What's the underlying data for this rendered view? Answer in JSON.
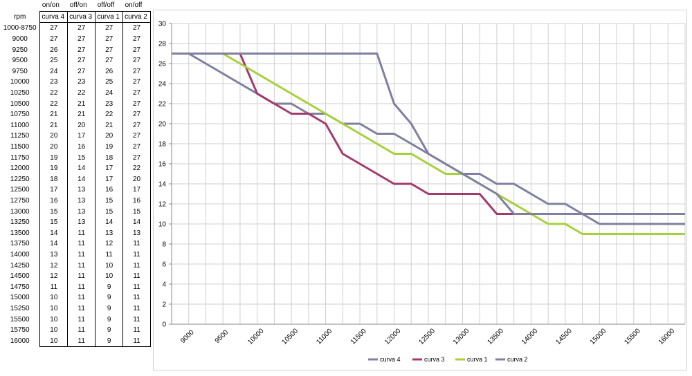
{
  "table": {
    "modes": [
      "on/on",
      "off/on",
      "off/off",
      "on/off"
    ],
    "headers": [
      "rpm",
      "curva 4",
      "curva 3",
      "curva 1",
      "curva 2"
    ],
    "rows": [
      [
        "1000-8750",
        "27",
        "27",
        "27",
        "27"
      ],
      [
        "9000",
        "27",
        "27",
        "27",
        "27"
      ],
      [
        "9250",
        "26",
        "27",
        "27",
        "27"
      ],
      [
        "9500",
        "25",
        "27",
        "27",
        "27"
      ],
      [
        "9750",
        "24",
        "27",
        "26",
        "27"
      ],
      [
        "10000",
        "23",
        "23",
        "25",
        "27"
      ],
      [
        "10250",
        "22",
        "22",
        "24",
        "27"
      ],
      [
        "10500",
        "22",
        "21",
        "23",
        "27"
      ],
      [
        "10750",
        "21",
        "21",
        "22",
        "27"
      ],
      [
        "11000",
        "21",
        "20",
        "21",
        "27"
      ],
      [
        "11250",
        "20",
        "17",
        "20",
        "27"
      ],
      [
        "11500",
        "20",
        "16",
        "19",
        "27"
      ],
      [
        "11750",
        "19",
        "15",
        "18",
        "27"
      ],
      [
        "12000",
        "19",
        "14",
        "17",
        "22"
      ],
      [
        "12250",
        "18",
        "14",
        "17",
        "20"
      ],
      [
        "12500",
        "17",
        "13",
        "16",
        "17"
      ],
      [
        "12750",
        "16",
        "13",
        "15",
        "16"
      ],
      [
        "13000",
        "15",
        "13",
        "15",
        "15"
      ],
      [
        "13250",
        "15",
        "13",
        "14",
        "14"
      ],
      [
        "13500",
        "14",
        "11",
        "13",
        "13"
      ],
      [
        "13750",
        "14",
        "11",
        "12",
        "11"
      ],
      [
        "14000",
        "13",
        "11",
        "11",
        "11"
      ],
      [
        "14250",
        "12",
        "11",
        "10",
        "11"
      ],
      [
        "14500",
        "12",
        "11",
        "10",
        "11"
      ],
      [
        "14750",
        "11",
        "11",
        "9",
        "11"
      ],
      [
        "15000",
        "10",
        "11",
        "9",
        "11"
      ],
      [
        "15250",
        "10",
        "11",
        "9",
        "11"
      ],
      [
        "15500",
        "10",
        "11",
        "9",
        "11"
      ],
      [
        "15750",
        "10",
        "11",
        "9",
        "11"
      ],
      [
        "16000",
        "10",
        "11",
        "9",
        "11"
      ]
    ]
  },
  "chart_data": {
    "type": "line",
    "xlim": [
      8750,
      16250
    ],
    "ylim": [
      0,
      30
    ],
    "x_ticks": [
      9000,
      9500,
      10000,
      10500,
      11000,
      11500,
      12000,
      12500,
      13000,
      13500,
      14000,
      14500,
      15000,
      15500,
      16000
    ],
    "y_ticks": [
      0,
      2,
      4,
      6,
      8,
      10,
      12,
      14,
      16,
      18,
      20,
      22,
      24,
      26,
      28,
      30
    ],
    "grid": true,
    "legend_position": "bottom",
    "x": [
      8750,
      9000,
      9250,
      9500,
      9750,
      10000,
      10250,
      10500,
      10750,
      11000,
      11250,
      11500,
      11750,
      12000,
      12250,
      12500,
      12750,
      13000,
      13250,
      13500,
      13750,
      14000,
      14250,
      14500,
      14750,
      15000,
      15250,
      15500,
      15750,
      16000,
      16250
    ],
    "series": [
      {
        "name": "curva 4",
        "color": "#7f7f9f",
        "values": [
          27,
          27,
          26,
          25,
          24,
          23,
          22,
          22,
          21,
          21,
          20,
          20,
          19,
          19,
          18,
          17,
          16,
          15,
          15,
          14,
          14,
          13,
          12,
          12,
          11,
          10,
          10,
          10,
          10,
          10,
          10
        ]
      },
      {
        "name": "curva 3",
        "color": "#a33a6e",
        "values": [
          27,
          27,
          27,
          27,
          27,
          23,
          22,
          21,
          21,
          20,
          17,
          16,
          15,
          14,
          14,
          13,
          13,
          13,
          13,
          11,
          11,
          11,
          11,
          11,
          11,
          11,
          11,
          11,
          11,
          11,
          11
        ]
      },
      {
        "name": "curva 1",
        "color": "#a6d13a",
        "values": [
          27,
          27,
          27,
          27,
          26,
          25,
          24,
          23,
          22,
          21,
          20,
          19,
          18,
          17,
          17,
          16,
          15,
          15,
          14,
          13,
          12,
          11,
          10,
          10,
          9,
          9,
          9,
          9,
          9,
          9,
          9
        ]
      },
      {
        "name": "curva 2",
        "color": "#7f7f9f",
        "values": [
          27,
          27,
          27,
          27,
          27,
          27,
          27,
          27,
          27,
          27,
          27,
          27,
          27,
          22,
          20,
          17,
          16,
          15,
          14,
          13,
          11,
          11,
          11,
          11,
          11,
          11,
          11,
          11,
          11,
          11,
          11
        ]
      }
    ]
  }
}
